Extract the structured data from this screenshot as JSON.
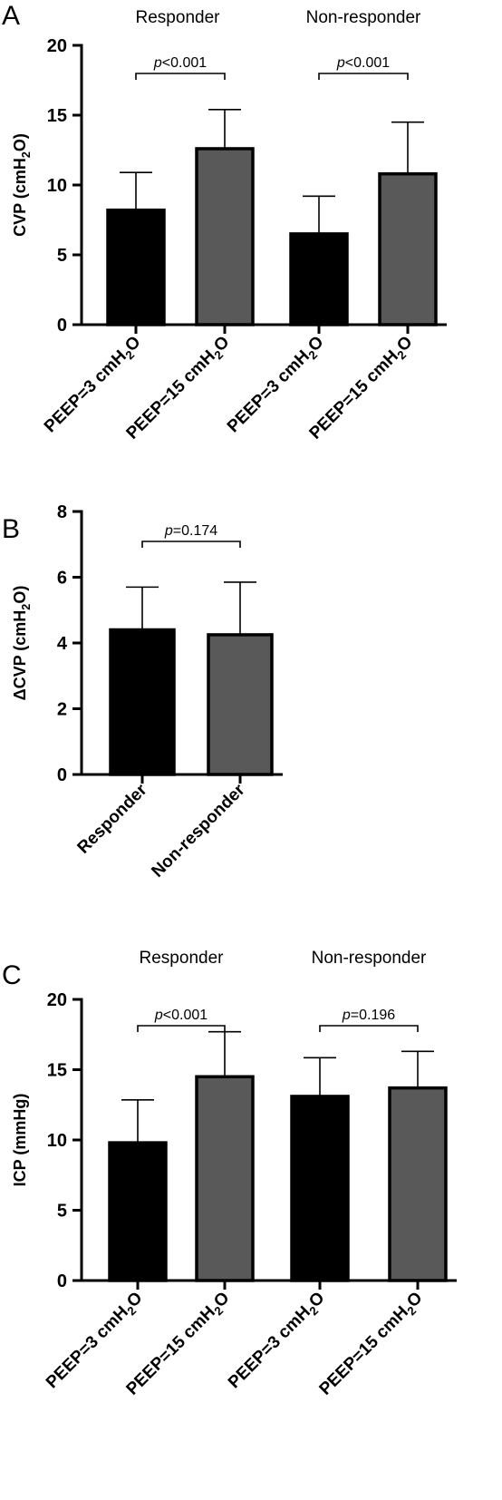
{
  "chart_data": [
    {
      "panel": "A",
      "type": "bar",
      "group_labels": [
        {
          "text": "Responder",
          "bars": [
            0,
            1
          ]
        },
        {
          "text": "Non-responder",
          "bars": [
            2,
            3
          ]
        }
      ],
      "categories": [
        {
          "main": "PEEP=3 cmH",
          "sub": "2",
          "tail": "O"
        },
        {
          "main": "PEEP=15 cmH",
          "sub": "2",
          "tail": "O"
        },
        {
          "main": "PEEP=3 cmH",
          "sub": "2",
          "tail": "O"
        },
        {
          "main": "PEEP=15 cmH",
          "sub": "2",
          "tail": "O"
        }
      ],
      "values": [
        8.2,
        12.6,
        6.5,
        10.8
      ],
      "errors": [
        2.7,
        2.8,
        2.7,
        3.7
      ],
      "colors": [
        "#000000",
        "#595959",
        "#000000",
        "#595959"
      ],
      "ylabel": {
        "main": "CVP (cmH",
        "sub": "2",
        "tail": "O)"
      },
      "ylim": [
        0,
        20
      ],
      "yticks": [
        0,
        5,
        10,
        15,
        20
      ],
      "comparisons": [
        {
          "bars": [
            0,
            1
          ],
          "p_italic": "p",
          "p_text": "<0.001"
        },
        {
          "bars": [
            2,
            3
          ],
          "p_italic": "p",
          "p_text": "<0.001"
        }
      ]
    },
    {
      "panel": "B",
      "type": "bar",
      "group_labels": [],
      "categories": [
        {
          "main": "Responder",
          "sub": "",
          "tail": ""
        },
        {
          "main": "Non-responder",
          "sub": "",
          "tail": ""
        }
      ],
      "values": [
        4.4,
        4.25
      ],
      "errors": [
        1.3,
        1.6
      ],
      "colors": [
        "#000000",
        "#595959"
      ],
      "ylabel": {
        "main": "ΔCVP (cmH",
        "sub": "2",
        "tail": "O)"
      },
      "ylim": [
        0,
        8
      ],
      "yticks": [
        0,
        2,
        4,
        6,
        8
      ],
      "comparisons": [
        {
          "bars": [
            0,
            1
          ],
          "p_italic": "p",
          "p_text": "=0.174"
        }
      ]
    },
    {
      "panel": "C",
      "type": "bar",
      "group_labels": [
        {
          "text": "Responder",
          "bars": [
            0,
            1
          ]
        },
        {
          "text": "Non-responder",
          "bars": [
            2,
            3
          ]
        }
      ],
      "categories": [
        {
          "main": "PEEP=3 cmH",
          "sub": "2",
          "tail": "O"
        },
        {
          "main": "PEEP=15 cmH",
          "sub": "2",
          "tail": "O"
        },
        {
          "main": "PEEP=3 cmH",
          "sub": "2",
          "tail": "O"
        },
        {
          "main": "PEEP=15 cmH",
          "sub": "2",
          "tail": "O"
        }
      ],
      "values": [
        9.8,
        14.5,
        13.1,
        13.7
      ],
      "errors": [
        3.05,
        3.2,
        2.75,
        2.6
      ],
      "colors": [
        "#000000",
        "#595959",
        "#000000",
        "#595959"
      ],
      "ylabel": {
        "main": "ICP (mmHg)",
        "sub": "",
        "tail": ""
      },
      "ylim": [
        0,
        20
      ],
      "yticks": [
        0,
        5,
        10,
        15,
        20
      ],
      "comparisons": [
        {
          "bars": [
            0,
            1
          ],
          "p_italic": "p",
          "p_text": "<0.001"
        },
        {
          "bars": [
            2,
            3
          ],
          "p_italic": "p",
          "p_text": "=0.196"
        }
      ]
    }
  ]
}
